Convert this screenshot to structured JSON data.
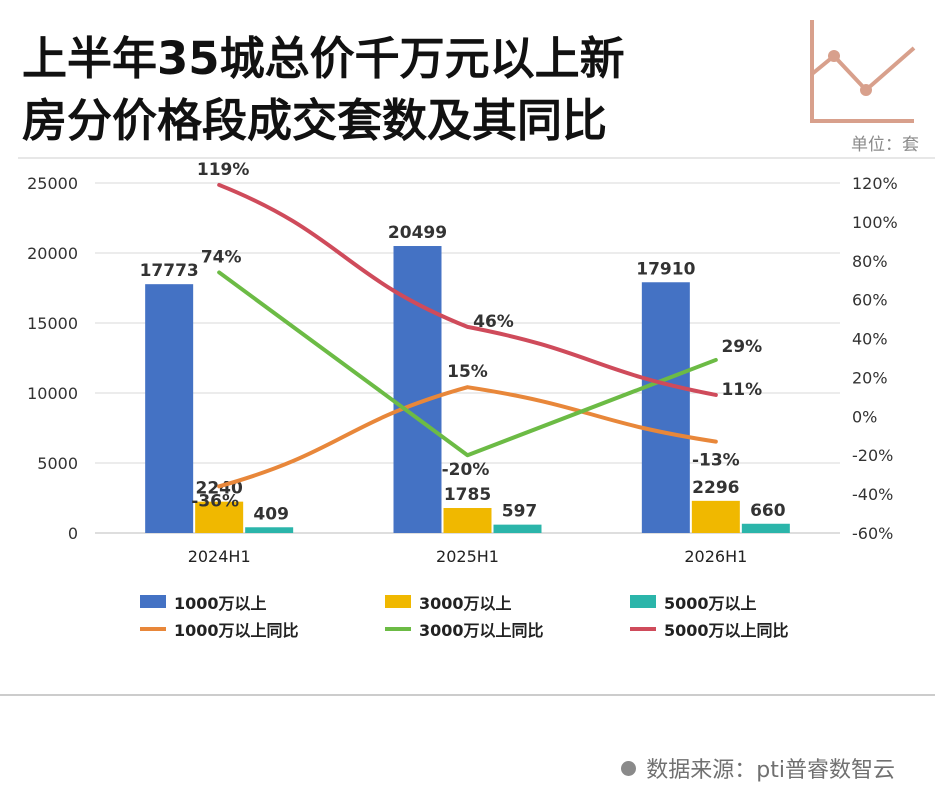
{
  "title_line1": "上半年35城总价千万元以上新",
  "title_line2": "房分价格段成交套数及其同比",
  "unit": "单位：套",
  "source": "数据来源：pti普睿数智云",
  "icon": "line-chart-icon",
  "colors": {
    "bar_1000": "#4472C4",
    "bar_3000": "#F0B800",
    "bar_5000": "#2BB5AA",
    "line_1000": "#E8873A",
    "line_3000": "#6CBB45",
    "line_5000": "#CF4B5B",
    "icon": "#D8A08C"
  },
  "chart_data": {
    "type": "bar",
    "categories": [
      "2024H1",
      "2025H1",
      "2026H1"
    ],
    "series": [
      {
        "name": "1000万以上",
        "type": "bar",
        "axis": "left",
        "values": [
          17773,
          20499,
          17910
        ],
        "labels": [
          "17773",
          "20499",
          "17910"
        ]
      },
      {
        "name": "3000万以上",
        "type": "bar",
        "axis": "left",
        "values": [
          2240,
          1785,
          2296
        ],
        "labels": [
          "2240",
          "1785",
          "2296"
        ]
      },
      {
        "name": "5000万以上",
        "type": "bar",
        "axis": "left",
        "values": [
          409,
          597,
          660
        ],
        "labels": [
          "409",
          "597",
          "660"
        ]
      },
      {
        "name": "1000万以上同比",
        "type": "line",
        "axis": "right",
        "values": [
          -36,
          15,
          -13
        ],
        "labels": [
          "-36%",
          "15%",
          "-13%"
        ]
      },
      {
        "name": "3000万以上同比",
        "type": "line",
        "axis": "right",
        "values": [
          74,
          -20,
          29
        ],
        "labels": [
          "74%",
          "-20%",
          "29%"
        ]
      },
      {
        "name": "5000万以上同比",
        "type": "line",
        "axis": "right",
        "values": [
          119,
          46,
          11
        ],
        "labels": [
          "119%",
          "46%",
          "11%"
        ]
      }
    ],
    "y_left": {
      "ylim": [
        0,
        25000
      ],
      "ticks": [
        "0",
        "5000",
        "10000",
        "15000",
        "20000",
        "25000"
      ]
    },
    "y_right": {
      "ylim": [
        -60,
        120
      ],
      "ticks": [
        "-60%",
        "-40%",
        "-20%",
        "0%",
        "20%",
        "40%",
        "60%",
        "80%",
        "100%",
        "120%"
      ]
    },
    "grid": true,
    "legend": "bottom"
  }
}
